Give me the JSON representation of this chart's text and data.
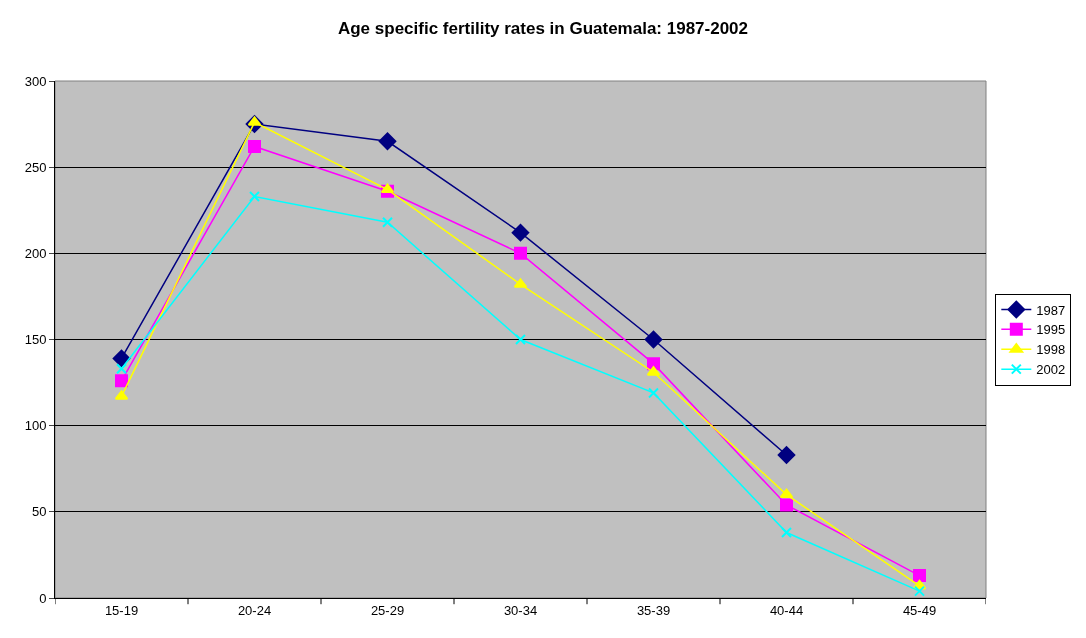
{
  "chart_data": {
    "type": "line",
    "title": "Age specific fertility rates in Guatemala: 1987-2002",
    "categories": [
      "15-19",
      "20-24",
      "25-29",
      "30-34",
      "35-39",
      "40-44",
      "45-49"
    ],
    "series": [
      {
        "name": "1987",
        "color": "#000080",
        "marker": "diamond",
        "values": [
          139,
          275,
          265,
          212,
          150,
          83,
          null
        ]
      },
      {
        "name": "1995",
        "color": "#ff00ff",
        "marker": "square",
        "values": [
          126,
          262,
          236,
          200,
          136,
          54,
          13
        ]
      },
      {
        "name": "1998",
        "color": "#ffff00",
        "marker": "triangle",
        "values": [
          117,
          276,
          237,
          182,
          131,
          60,
          7
        ]
      },
      {
        "name": "2002",
        "color": "#00ffff",
        "marker": "cross",
        "values": [
          133,
          233,
          218,
          150,
          119,
          38,
          4
        ]
      }
    ],
    "ylim": [
      0,
      300
    ],
    "yticks": [
      0,
      50,
      100,
      150,
      200,
      250,
      300
    ],
    "grid": "y",
    "legend": "right",
    "line_style": "solid"
  }
}
